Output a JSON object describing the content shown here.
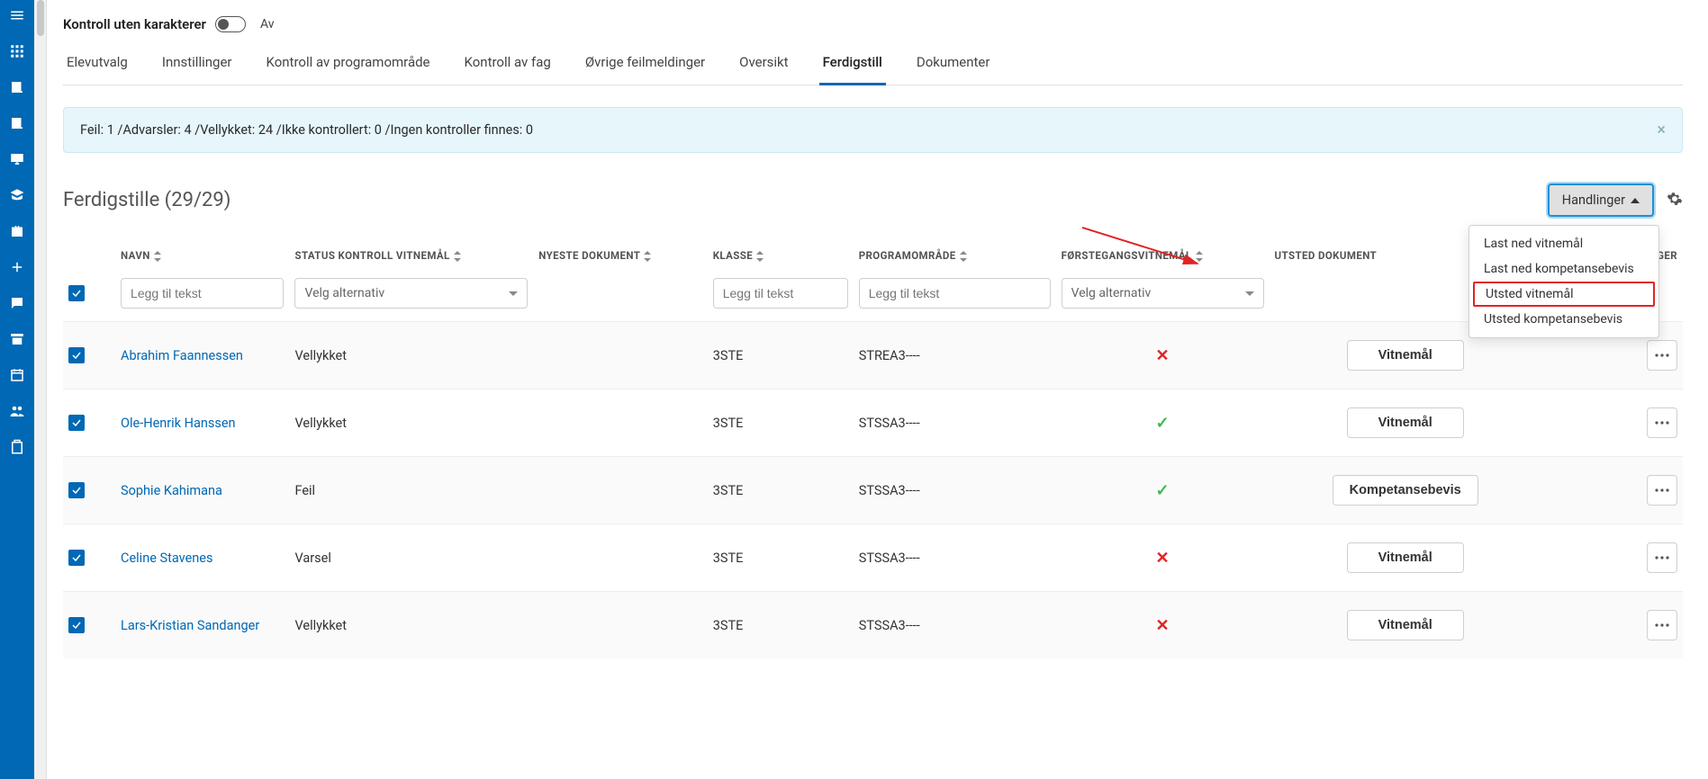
{
  "colors": {
    "primary": "#0068b4",
    "alert_bg": "#e6f6fb",
    "alert_border": "#cde9f2",
    "highlight_red": "#e02424",
    "success": "#3fb950",
    "danger": "#e02424"
  },
  "top": {
    "control_label": "Kontroll uten karakterer",
    "toggle_state": "Av"
  },
  "tabs": [
    {
      "label": "Elevutvalg",
      "active": false
    },
    {
      "label": "Innstillinger",
      "active": false
    },
    {
      "label": "Kontroll av programområde",
      "active": false
    },
    {
      "label": "Kontroll av fag",
      "active": false
    },
    {
      "label": "Øvrige feilmeldinger",
      "active": false
    },
    {
      "label": "Oversikt",
      "active": false
    },
    {
      "label": "Ferdigstill",
      "active": true
    },
    {
      "label": "Dokumenter",
      "active": false
    }
  ],
  "alert_text": "Feil: 1 /Advarsler: 4 /Vellykket: 24 /Ikke kontrollert: 0 /Ingen kontroller finnes: 0",
  "section_title": "Ferdigstille (29/29)",
  "actions_button": "Handlinger",
  "dropdown": [
    "Last ned vitnemål",
    "Last ned kompetansebevis",
    "Utsted vitnemål",
    "Utsted kompetansebevis"
  ],
  "dropdown_highlight_index": 2,
  "columns": {
    "name": "NAVN",
    "status": "STATUS KONTROLL VITNEMÅL",
    "newest": "NYESTE DOKUMENT",
    "class": "KLASSE",
    "program": "PROGRAMOMRÅDE",
    "first": "FØRSTEGANGSVITNEMÅL",
    "issued": "UTSTED DOKUMENT",
    "actions_col": "LINGER"
  },
  "filters": {
    "name_placeholder": "Legg til tekst",
    "status_placeholder": "Velg alternativ",
    "class_placeholder": "Legg til tekst",
    "program_placeholder": "Legg til tekst",
    "first_placeholder": "Velg alternativ"
  },
  "rows": [
    {
      "name": "Abrahim Faannessen",
      "status": "Vellykket",
      "class": "3STE",
      "program": "STREA3----",
      "first": "cross",
      "doc": "Vitnemål"
    },
    {
      "name": "Ole-Henrik Hanssen",
      "status": "Vellykket",
      "class": "3STE",
      "program": "STSSA3----",
      "first": "check",
      "doc": "Vitnemål"
    },
    {
      "name": "Sophie Kahimana",
      "status": "Feil",
      "class": "3STE",
      "program": "STSSA3----",
      "first": "check",
      "doc": "Kompetansebevis"
    },
    {
      "name": "Celine Stavenes",
      "status": "Varsel",
      "class": "3STE",
      "program": "STSSA3----",
      "first": "cross",
      "doc": "Vitnemål"
    },
    {
      "name": "Lars-Kristian Sandanger",
      "status": "Vellykket",
      "class": "3STE",
      "program": "STSSA3----",
      "first": "cross",
      "doc": "Vitnemål"
    }
  ]
}
